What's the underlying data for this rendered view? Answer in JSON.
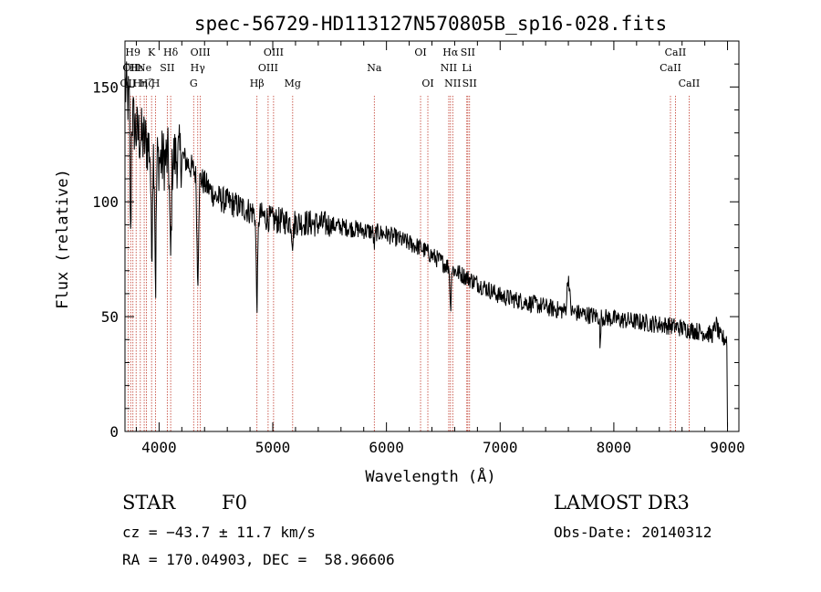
{
  "chart_data": {
    "type": "line",
    "title": "spec-56729-HD113127N570805B_sp16-028.fits",
    "xlabel": "Wavelength (Å)",
    "ylabel": "Flux (relative)",
    "xlim": [
      3700,
      9100
    ],
    "ylim": [
      0,
      170
    ],
    "x_ticks": [
      4000,
      5000,
      6000,
      7000,
      8000,
      9000
    ],
    "x_tick_labels": [
      "4000",
      "5000",
      "6000",
      "7000",
      "8000",
      "9000"
    ],
    "y_ticks": [
      0,
      50,
      100,
      150
    ],
    "y_tick_labels": [
      "0",
      "50",
      "100",
      "150"
    ],
    "grid": false,
    "continuum": [
      [
        3700,
        150
      ],
      [
        3800,
        130
      ],
      [
        3900,
        125
      ],
      [
        4000,
        118
      ],
      [
        4200,
        120
      ],
      [
        4500,
        102
      ],
      [
        5000,
        92
      ],
      [
        5500,
        90
      ],
      [
        6000,
        86
      ],
      [
        6300,
        80
      ],
      [
        6600,
        70
      ],
      [
        7000,
        59
      ],
      [
        7500,
        53
      ],
      [
        8000,
        49
      ],
      [
        8500,
        46
      ],
      [
        8800,
        43
      ],
      [
        9000,
        40
      ]
    ],
    "absorption_features": [
      {
        "center": 3750,
        "depth": 60,
        "width": 6
      },
      {
        "center": 3934,
        "depth": 45,
        "width": 8
      },
      {
        "center": 3969,
        "depth": 55,
        "width": 8
      },
      {
        "center": 4101,
        "depth": 45,
        "width": 10
      },
      {
        "center": 4340,
        "depth": 45,
        "width": 10
      },
      {
        "center": 4861,
        "depth": 38,
        "width": 10
      },
      {
        "center": 5175,
        "depth": 8,
        "width": 10
      },
      {
        "center": 5893,
        "depth": 6,
        "width": 8
      },
      {
        "center": 6563,
        "depth": 18,
        "width": 7
      },
      {
        "center": 7600,
        "depth": -15,
        "width": 15
      },
      {
        "center": 7880,
        "depth": 15,
        "width": 5
      },
      {
        "center": 8900,
        "depth": -5,
        "width": 20
      }
    ],
    "line_markers": [
      {
        "wavelength": 3727,
        "label": "OII",
        "row": 3
      },
      {
        "wavelength": 3750,
        "label": "OII",
        "row": 2
      },
      {
        "wavelength": 3770,
        "label": "H9",
        "row": 1
      },
      {
        "wavelength": 3798,
        "label": "Hε",
        "row": 2
      },
      {
        "wavelength": 3835,
        "label": "Hη",
        "row": 3
      },
      {
        "wavelength": 3869,
        "label": "Ne",
        "row": 2
      },
      {
        "wavelength": 3889,
        "label": "Hζ",
        "row": 3
      },
      {
        "wavelength": 3934,
        "label": "K",
        "row": 1
      },
      {
        "wavelength": 3969,
        "label": "H",
        "row": 3
      },
      {
        "wavelength": 4072,
        "label": "SII",
        "row": 2
      },
      {
        "wavelength": 4102,
        "label": "Hδ",
        "row": 1
      },
      {
        "wavelength": 4304,
        "label": "G",
        "row": 3
      },
      {
        "wavelength": 4340,
        "label": "Hγ",
        "row": 2
      },
      {
        "wavelength": 4363,
        "label": "OIII",
        "row": 1
      },
      {
        "wavelength": 4861,
        "label": "Hβ",
        "row": 3
      },
      {
        "wavelength": 4959,
        "label": "OIII",
        "row": 2
      },
      {
        "wavelength": 5007,
        "label": "OIII",
        "row": 1
      },
      {
        "wavelength": 5175,
        "label": "Mg",
        "row": 3
      },
      {
        "wavelength": 5893,
        "label": "Na",
        "row": 2
      },
      {
        "wavelength": 6300,
        "label": "OI",
        "row": 1
      },
      {
        "wavelength": 6364,
        "label": "OI",
        "row": 3
      },
      {
        "wavelength": 6548,
        "label": "NII",
        "row": 2
      },
      {
        "wavelength": 6563,
        "label": "Hα",
        "row": 1
      },
      {
        "wavelength": 6583,
        "label": "NII",
        "row": 3
      },
      {
        "wavelength": 6707,
        "label": "Li",
        "row": 2
      },
      {
        "wavelength": 6716,
        "label": "SII",
        "row": 1
      },
      {
        "wavelength": 6731,
        "label": "SII",
        "row": 3
      },
      {
        "wavelength": 8498,
        "label": "CaII",
        "row": 2
      },
      {
        "wavelength": 8542,
        "label": "CaII",
        "row": 1
      },
      {
        "wavelength": 8662,
        "label": "CaII",
        "row": 3
      }
    ],
    "marker_color": "#c0392b",
    "line_color": "#000000"
  },
  "info": {
    "object_class": "STAR",
    "subclass": "F0",
    "survey": "LAMOST DR3",
    "redshift": "cz = −43.7 ± 11.7 km/s",
    "obs_date": "Obs-Date: 20140312",
    "coords": "RA = 170.04903, DEC =  58.96606"
  }
}
